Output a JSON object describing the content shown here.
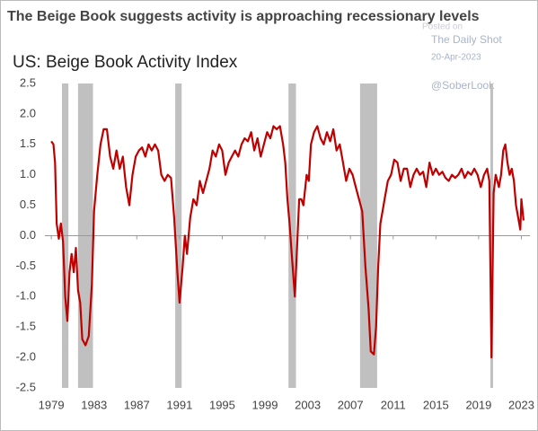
{
  "chart_data": {
    "type": "line",
    "title": "The Beige Book suggests activity is approaching recessionary levels",
    "subtitle": "US: Beige Book Activity Index",
    "annotations": [
      "Posted on",
      "The Daily Shot",
      "20-Apr-2023",
      "@SoberLook"
    ],
    "color": "#c00000",
    "recession_color": "#c0c0c0",
    "recessions": [
      [
        1980.0,
        1980.6
      ],
      [
        1981.5,
        1982.9
      ],
      [
        1990.6,
        1991.2
      ],
      [
        2001.2,
        2001.9
      ],
      [
        2007.9,
        2009.5
      ],
      [
        2020.1,
        2020.35
      ]
    ],
    "xlim": [
      1978.4,
      2023.8
    ],
    "xticks": [
      1979,
      1983,
      1987,
      1991,
      1995,
      1999,
      2003,
      2007,
      2011,
      2015,
      2019,
      2023
    ],
    "ylim": [
      -2.5,
      2.5
    ],
    "yticks": [
      2.5,
      {
        "value": 2,
        "label": "2.0"
      },
      1.5,
      {
        "value": 1,
        "label": "1.0"
      },
      0.5,
      {
        "value": 0,
        "label": "0.0"
      },
      -0.5,
      {
        "value": -1,
        "label": "-1.0"
      },
      -1.5,
      {
        "value": -2,
        "label": "-2.0"
      },
      -2.5
    ],
    "x": [
      1979.0,
      1979.2,
      1979.35,
      1979.5,
      1979.7,
      1979.9,
      1980.1,
      1980.3,
      1980.5,
      1980.7,
      1980.9,
      1981.1,
      1981.3,
      1981.5,
      1981.7,
      1981.9,
      1982.2,
      1982.5,
      1982.8,
      1983.0,
      1983.3,
      1983.6,
      1983.9,
      1984.2,
      1984.5,
      1984.8,
      1985.1,
      1985.4,
      1985.7,
      1986.0,
      1986.3,
      1986.6,
      1986.9,
      1987.2,
      1987.5,
      1987.8,
      1988.1,
      1988.4,
      1988.7,
      1989.0,
      1989.3,
      1989.6,
      1989.9,
      1990.2,
      1990.5,
      1990.8,
      1991.0,
      1991.3,
      1991.5,
      1991.7,
      1992.0,
      1992.3,
      1992.6,
      1992.9,
      1993.2,
      1993.5,
      1993.8,
      1994.1,
      1994.4,
      1994.7,
      1995.0,
      1995.3,
      1995.6,
      1995.9,
      1996.2,
      1996.5,
      1996.8,
      1997.1,
      1997.4,
      1997.7,
      1998.0,
      1998.3,
      1998.6,
      1998.9,
      1999.2,
      1999.5,
      1999.8,
      2000.1,
      2000.4,
      2000.7,
      2000.9,
      2001.1,
      2001.3,
      2001.5,
      2001.8,
      2002.0,
      2002.2,
      2002.4,
      2002.6,
      2002.9,
      2003.1,
      2003.3,
      2003.6,
      2003.9,
      2004.2,
      2004.5,
      2004.8,
      2005.1,
      2005.4,
      2005.7,
      2006.0,
      2006.3,
      2006.6,
      2006.9,
      2007.2,
      2007.5,
      2007.8,
      2008.1,
      2008.4,
      2008.7,
      2008.9,
      2009.2,
      2009.4,
      2009.6,
      2009.8,
      2010.0,
      2010.2,
      2010.5,
      2010.8,
      2011.1,
      2011.4,
      2011.7,
      2012.0,
      2012.3,
      2012.6,
      2012.9,
      2013.2,
      2013.5,
      2013.8,
      2014.1,
      2014.4,
      2014.7,
      2015.0,
      2015.3,
      2015.6,
      2015.9,
      2016.2,
      2016.5,
      2016.8,
      2017.1,
      2017.4,
      2017.7,
      2018.0,
      2018.3,
      2018.6,
      2018.9,
      2019.2,
      2019.5,
      2019.8,
      2020.0,
      2020.2,
      2020.4,
      2020.6,
      2020.9,
      2021.1,
      2021.3,
      2021.5,
      2021.7,
      2021.9,
      2022.1,
      2022.3,
      2022.5,
      2022.7,
      2022.9,
      2023.0,
      2023.2
    ],
    "values": [
      1.55,
      1.5,
      1.2,
      0.2,
      -0.05,
      0.2,
      -0.1,
      -1.0,
      -1.4,
      -0.6,
      -0.3,
      -0.6,
      -0.2,
      -0.9,
      -1.1,
      -1.7,
      -1.8,
      -1.65,
      -0.8,
      0.4,
      1.0,
      1.5,
      1.75,
      1.75,
      1.3,
      1.1,
      1.4,
      1.1,
      1.3,
      0.8,
      0.5,
      1.0,
      1.3,
      1.4,
      1.45,
      1.3,
      1.5,
      1.4,
      1.5,
      1.4,
      1.0,
      0.9,
      1.0,
      0.95,
      0.3,
      -0.6,
      -1.1,
      -0.5,
      0.0,
      -0.3,
      0.3,
      0.6,
      0.5,
      0.9,
      0.7,
      0.9,
      1.1,
      1.4,
      1.3,
      1.5,
      1.4,
      1.0,
      1.2,
      1.3,
      1.4,
      1.3,
      1.5,
      1.6,
      1.55,
      1.7,
      1.4,
      1.6,
      1.3,
      1.5,
      1.7,
      1.6,
      1.8,
      1.75,
      1.8,
      1.5,
      1.2,
      0.6,
      0.2,
      -0.3,
      -1.0,
      -0.2,
      0.6,
      0.6,
      0.5,
      1.0,
      0.9,
      1.5,
      1.7,
      1.8,
      1.6,
      1.5,
      1.7,
      1.55,
      1.75,
      1.4,
      1.5,
      1.2,
      0.9,
      1.1,
      1.0,
      0.8,
      0.6,
      0.4,
      -0.5,
      -1.2,
      -1.9,
      -1.95,
      -1.5,
      -0.5,
      0.2,
      0.4,
      0.6,
      0.9,
      1.0,
      1.25,
      1.2,
      0.9,
      1.1,
      1.1,
      0.8,
      1.0,
      1.1,
      1.0,
      1.05,
      0.8,
      1.2,
      1.0,
      1.1,
      1.0,
      1.05,
      0.95,
      0.9,
      1.0,
      0.95,
      1.0,
      1.1,
      0.95,
      1.05,
      1.0,
      1.1,
      1.0,
      0.8,
      1.0,
      1.1,
      0.9,
      -2.0,
      0.7,
      1.0,
      0.8,
      1.0,
      1.4,
      1.5,
      1.2,
      1.0,
      1.1,
      0.9,
      0.5,
      0.3,
      0.1,
      0.6,
      0.25
    ]
  }
}
